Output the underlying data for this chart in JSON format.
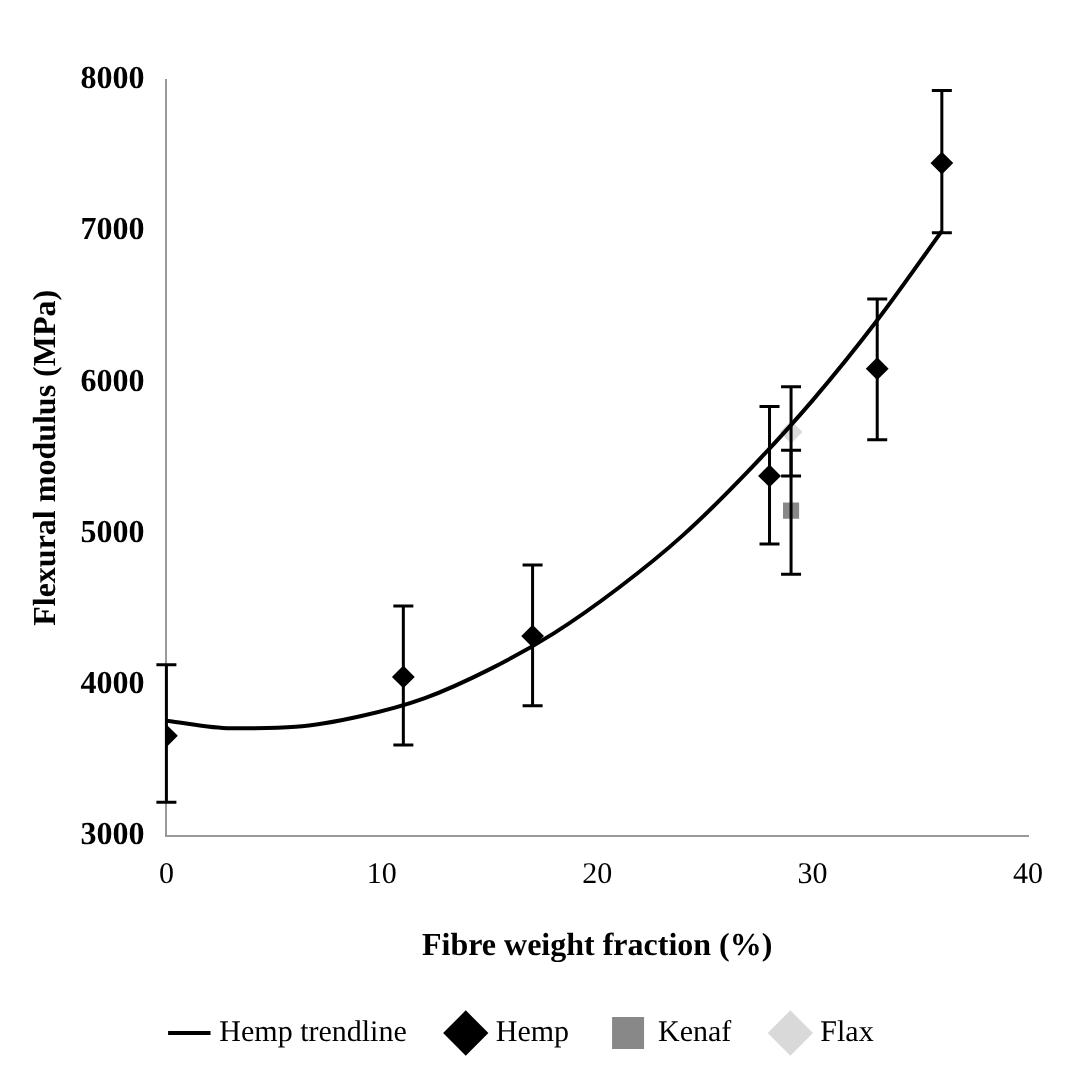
{
  "chart_data": {
    "type": "scatter",
    "xlabel": "Fibre weight fraction (%)",
    "ylabel": "Flexural modulus (MPa)",
    "xlim": [
      0,
      40
    ],
    "xticks": [
      0,
      10,
      20,
      30,
      40
    ],
    "ylim": [
      3000,
      8000
    ],
    "yticks": [
      3000,
      4000,
      5000,
      6000,
      7000,
      8000
    ],
    "grid": false,
    "legend": "bottom",
    "series": [
      {
        "name": "Hemp",
        "marker": "diamond",
        "color": "#000000",
        "x": [
          0,
          11,
          17,
          28,
          33,
          36
        ],
        "values": [
          3660,
          4050,
          4320,
          5380,
          6090,
          7450
        ],
        "errors": [
          [
            3220,
            4130
          ],
          [
            3600,
            4520
          ],
          [
            3860,
            4790
          ],
          [
            4930,
            5840
          ],
          [
            5620,
            6550
          ],
          [
            6990,
            7930
          ]
        ]
      },
      {
        "name": "Kenaf",
        "marker": "square",
        "color": "#888888",
        "x": [
          29
        ],
        "values": [
          5150
        ],
        "errors": [
          [
            4730,
            5550
          ]
        ]
      },
      {
        "name": "Flax",
        "marker": "diamond",
        "color": "#d9d9d9",
        "x": [
          29
        ],
        "values": [
          5670
        ],
        "errors": [
          [
            5380,
            5970
          ]
        ]
      },
      {
        "name": "Hemp trendline",
        "type": "line",
        "marker": "none",
        "line_style": "solid",
        "color": "#000000",
        "x": [
          0,
          3,
          6,
          9,
          12,
          15,
          18,
          21,
          24,
          27,
          30,
          33,
          36
        ],
        "values": [
          3760,
          3710,
          3720,
          3790,
          3910,
          4100,
          4340,
          4640,
          4990,
          5410,
          5880,
          6410,
          7000
        ]
      }
    ]
  }
}
